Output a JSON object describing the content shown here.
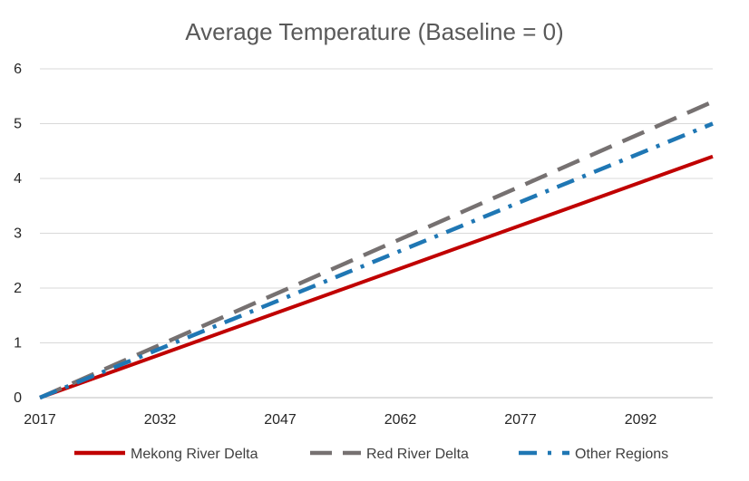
{
  "chart_data": {
    "type": "line",
    "title": "Average Temperature (Baseline = 0)",
    "xlabel": "",
    "ylabel": "",
    "x": [
      2017,
      2101
    ],
    "xlim": [
      2017,
      2101
    ],
    "ylim": [
      0,
      6
    ],
    "x_ticks": [
      2017,
      2032,
      2047,
      2062,
      2077,
      2092
    ],
    "y_ticks": [
      0,
      1,
      2,
      3,
      4,
      5,
      6
    ],
    "grid": "horizontal",
    "legend_position": "bottom",
    "series": [
      {
        "name": "Mekong River Delta",
        "values": [
          0,
          4.4
        ],
        "color": "#C00000",
        "style": "solid"
      },
      {
        "name": "Red River Delta",
        "values": [
          0,
          5.4
        ],
        "color": "#767171",
        "style": "dash"
      },
      {
        "name": "Other Regions",
        "values": [
          0,
          5.0
        ],
        "color": "#1F77B4",
        "style": "dash-dot"
      }
    ]
  }
}
